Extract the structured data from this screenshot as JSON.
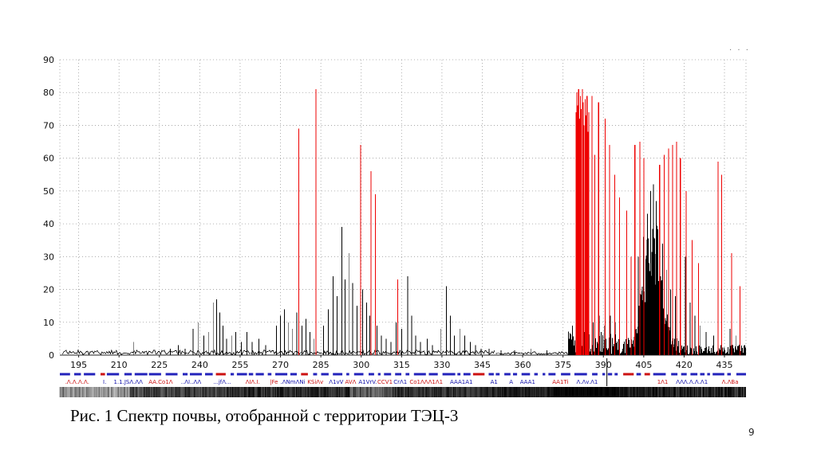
{
  "page": {
    "caption": "Рис. 1 Спектр почвы, отобранной с территории ТЭЦ-3",
    "page_number": "9",
    "corner_marks": "· · ·"
  },
  "chart_data": {
    "type": "bar",
    "subtype": "emission-spectrum",
    "title": "",
    "xlabel": "",
    "ylabel": "",
    "xlim": [
      188,
      443
    ],
    "ylim": [
      0,
      90
    ],
    "x_ticks": [
      195,
      210,
      225,
      240,
      255,
      270,
      285,
      300,
      315,
      330,
      345,
      360,
      375,
      390,
      405,
      420,
      435
    ],
    "y_ticks": [
      0,
      10,
      20,
      30,
      40,
      50,
      60,
      70,
      80,
      90
    ],
    "grid": true,
    "legend": "none",
    "cursor_nm": 391.3,
    "series": [
      {
        "name": "sample-lines-black",
        "color": "#000000",
        "width": 0.9,
        "peaks": [
          [
            215.5,
            4
          ],
          [
            229,
            2
          ],
          [
            232,
            3
          ],
          [
            234.5,
            2
          ],
          [
            237.5,
            8
          ],
          [
            239.5,
            10
          ],
          [
            241.5,
            6
          ],
          [
            243.2,
            7
          ],
          [
            245,
            16
          ],
          [
            246.2,
            17
          ],
          [
            247.4,
            13
          ],
          [
            248.6,
            9
          ],
          [
            250,
            5
          ],
          [
            251.8,
            6
          ],
          [
            253.4,
            7
          ],
          [
            255.5,
            4
          ],
          [
            257.5,
            7
          ],
          [
            259.5,
            4
          ],
          [
            262,
            5
          ],
          [
            264.5,
            3
          ],
          [
            268.5,
            9
          ],
          [
            270,
            12
          ],
          [
            271.5,
            14
          ],
          [
            273,
            10
          ],
          [
            274.5,
            8
          ],
          [
            276,
            13
          ],
          [
            278,
            9
          ],
          [
            279.5,
            11
          ],
          [
            281,
            7
          ],
          [
            282.5,
            5
          ],
          [
            286,
            9
          ],
          [
            287.8,
            14
          ],
          [
            289.5,
            24
          ],
          [
            291,
            18
          ],
          [
            292.8,
            39
          ],
          [
            294,
            23
          ],
          [
            295.4,
            31
          ],
          [
            296.8,
            22
          ],
          [
            298.4,
            15
          ],
          [
            300.5,
            20
          ],
          [
            302,
            16
          ],
          [
            303.2,
            12
          ],
          [
            305.8,
            9
          ],
          [
            307.5,
            6
          ],
          [
            309.2,
            5
          ],
          [
            311,
            4
          ],
          [
            313,
            10
          ],
          [
            315,
            8
          ],
          [
            317.3,
            24
          ],
          [
            318.7,
            12
          ],
          [
            320.2,
            6
          ],
          [
            322,
            4
          ],
          [
            324.5,
            5
          ],
          [
            326.5,
            3
          ],
          [
            329.5,
            8
          ],
          [
            331.7,
            21
          ],
          [
            333.1,
            12
          ],
          [
            334.6,
            6
          ],
          [
            336.6,
            8
          ],
          [
            338.5,
            6
          ],
          [
            340.5,
            4
          ],
          [
            342.5,
            3
          ],
          [
            344.5,
            2
          ],
          [
            347.5,
            2
          ],
          [
            352,
            1.5
          ],
          [
            357,
            1.5
          ],
          [
            363,
            2
          ],
          [
            369,
            1.5
          ],
          [
            378.5,
            9
          ],
          [
            380.8,
            40
          ],
          [
            382.3,
            16
          ],
          [
            384,
            12
          ],
          [
            386.2,
            10
          ],
          [
            388.4,
            12
          ],
          [
            390.5,
            9
          ],
          [
            392.6,
            12
          ],
          [
            394.3,
            10
          ],
          [
            403,
            30
          ],
          [
            404.8,
            36
          ],
          [
            406.4,
            43
          ],
          [
            407.6,
            50
          ],
          [
            408.6,
            52
          ],
          [
            409.6,
            47
          ],
          [
            410.8,
            41
          ],
          [
            412,
            34
          ],
          [
            413.4,
            26
          ],
          [
            415,
            20
          ],
          [
            416.8,
            18
          ],
          [
            418.6,
            24
          ],
          [
            420.5,
            30
          ],
          [
            422.2,
            16
          ],
          [
            424,
            12
          ],
          [
            426,
            9
          ],
          [
            428.2,
            7
          ],
          [
            431,
            6
          ],
          [
            434,
            5
          ],
          [
            437,
            8
          ],
          [
            439.2,
            6
          ]
        ]
      },
      {
        "name": "reference-lines-red",
        "color": "#ee0000",
        "width": 1.1,
        "peaks": [
          [
            276.8,
            69
          ],
          [
            283.2,
            81
          ],
          [
            299.8,
            64
          ],
          [
            303.6,
            56
          ],
          [
            305.2,
            49
          ],
          [
            313.5,
            23
          ],
          [
            379.8,
            74
          ],
          [
            380.1,
            80
          ],
          [
            380.45,
            76
          ],
          [
            380.8,
            81
          ],
          [
            381.1,
            72
          ],
          [
            381.45,
            79
          ],
          [
            381.8,
            75
          ],
          [
            382.15,
            81
          ],
          [
            382.5,
            77
          ],
          [
            382.85,
            70
          ],
          [
            383.2,
            78
          ],
          [
            383.55,
            73
          ],
          [
            383.9,
            79
          ],
          [
            384.25,
            68
          ],
          [
            384.6,
            74
          ],
          [
            385.7,
            79
          ],
          [
            386.8,
            61
          ],
          [
            388.2,
            77
          ],
          [
            390.6,
            72
          ],
          [
            392.3,
            64
          ],
          [
            394.2,
            55
          ],
          [
            396,
            48
          ],
          [
            398.6,
            44
          ],
          [
            400.3,
            30
          ],
          [
            401.7,
            64
          ],
          [
            403.5,
            65
          ],
          [
            405,
            60
          ],
          [
            410.9,
            58
          ],
          [
            412.6,
            61
          ],
          [
            414.2,
            63
          ],
          [
            415.7,
            64
          ],
          [
            417.2,
            65
          ],
          [
            418.6,
            60
          ],
          [
            420.8,
            50
          ],
          [
            423,
            35
          ],
          [
            425.4,
            28
          ],
          [
            432.6,
            59
          ],
          [
            433.9,
            55
          ],
          [
            437.6,
            31
          ],
          [
            440.8,
            21
          ]
        ]
      }
    ],
    "noise_regions": [
      {
        "from": 189,
        "to": 350,
        "amp": 1.4
      },
      {
        "from": 350,
        "to": 377,
        "amp": 0.9
      },
      {
        "from": 377,
        "to": 396,
        "amp": 7
      },
      {
        "from": 396,
        "to": 418,
        "amp": 5
      },
      {
        "from": 418,
        "to": 443,
        "amp": 3
      }
    ],
    "black_hump": {
      "from": 395,
      "to": 418,
      "center": 408.3,
      "sigma": 3.4,
      "max": 48
    }
  },
  "markers": {
    "palette": {
      "r": "#cc1111",
      "b": "#1111aa"
    },
    "dash_row": {
      "y": 470,
      "main": "#2222bb",
      "alt": "#cc1111",
      "alt_prob": 0.1
    },
    "label_y": 482,
    "strip": {
      "y": 486,
      "h": 13
    },
    "element_labels": [
      {
        "x": 190,
        "t": ".Λ.Λ.Λ.Λ.",
        "c": "r"
      },
      {
        "x": 204,
        "t": "I.",
        "c": "b"
      },
      {
        "x": 208,
        "t": "1.1.JSΛ.ΛΛ",
        "c": "b"
      },
      {
        "x": 221,
        "t": "AA.Co1Λ",
        "c": "r"
      },
      {
        "x": 233,
        "t": "..ΛI..ΛΛ",
        "c": "b"
      },
      {
        "x": 245,
        "t": "...jfΛ...",
        "c": "b"
      },
      {
        "x": 257,
        "t": "ΛIΛ.I.",
        "c": "r"
      },
      {
        "x": 266,
        "t": "|Fe",
        "c": "r"
      },
      {
        "x": 270,
        "t": ".ΛNmΛNi",
        "c": "b"
      },
      {
        "x": 280,
        "t": "KSiΛv",
        "c": "r"
      },
      {
        "x": 288,
        "t": "Λ1vV",
        "c": "b"
      },
      {
        "x": 294,
        "t": "AVΛ",
        "c": "r"
      },
      {
        "x": 299,
        "t": "A1VrV.",
        "c": "b"
      },
      {
        "x": 306,
        "t": "CCV1",
        "c": "r"
      },
      {
        "x": 312,
        "t": "CrΛ1",
        "c": "b"
      },
      {
        "x": 318,
        "t": "Co1ΛΛΛ1Λ1",
        "c": "r"
      },
      {
        "x": 333,
        "t": "AAA1A1",
        "c": "b"
      },
      {
        "x": 348,
        "t": "A1",
        "c": "b"
      },
      {
        "x": 355,
        "t": "A",
        "c": "b"
      },
      {
        "x": 359,
        "t": "AAA1",
        "c": "b"
      },
      {
        "x": 371,
        "t": "AA1Ti",
        "c": "r"
      },
      {
        "x": 380,
        "t": "Λ.Λv.Λ1",
        "c": "b"
      },
      {
        "x": 410,
        "t": "1Λ1",
        "c": "r"
      },
      {
        "x": 417,
        "t": "ΛΛΛ.Λ.Λ.Λ1",
        "c": "b"
      },
      {
        "x": 434,
        "t": "Λ.ΛBa",
        "c": "r"
      }
    ],
    "strip_zones": [
      [
        188,
        214,
        150,
        50
      ],
      [
        214,
        250,
        70,
        45
      ],
      [
        250,
        296,
        45,
        40
      ],
      [
        296,
        312,
        95,
        45
      ],
      [
        312,
        345,
        50,
        35
      ],
      [
        345,
        372,
        35,
        25
      ],
      [
        372,
        396,
        6,
        10
      ],
      [
        396,
        415,
        28,
        30
      ],
      [
        415,
        443,
        42,
        45
      ]
    ]
  }
}
